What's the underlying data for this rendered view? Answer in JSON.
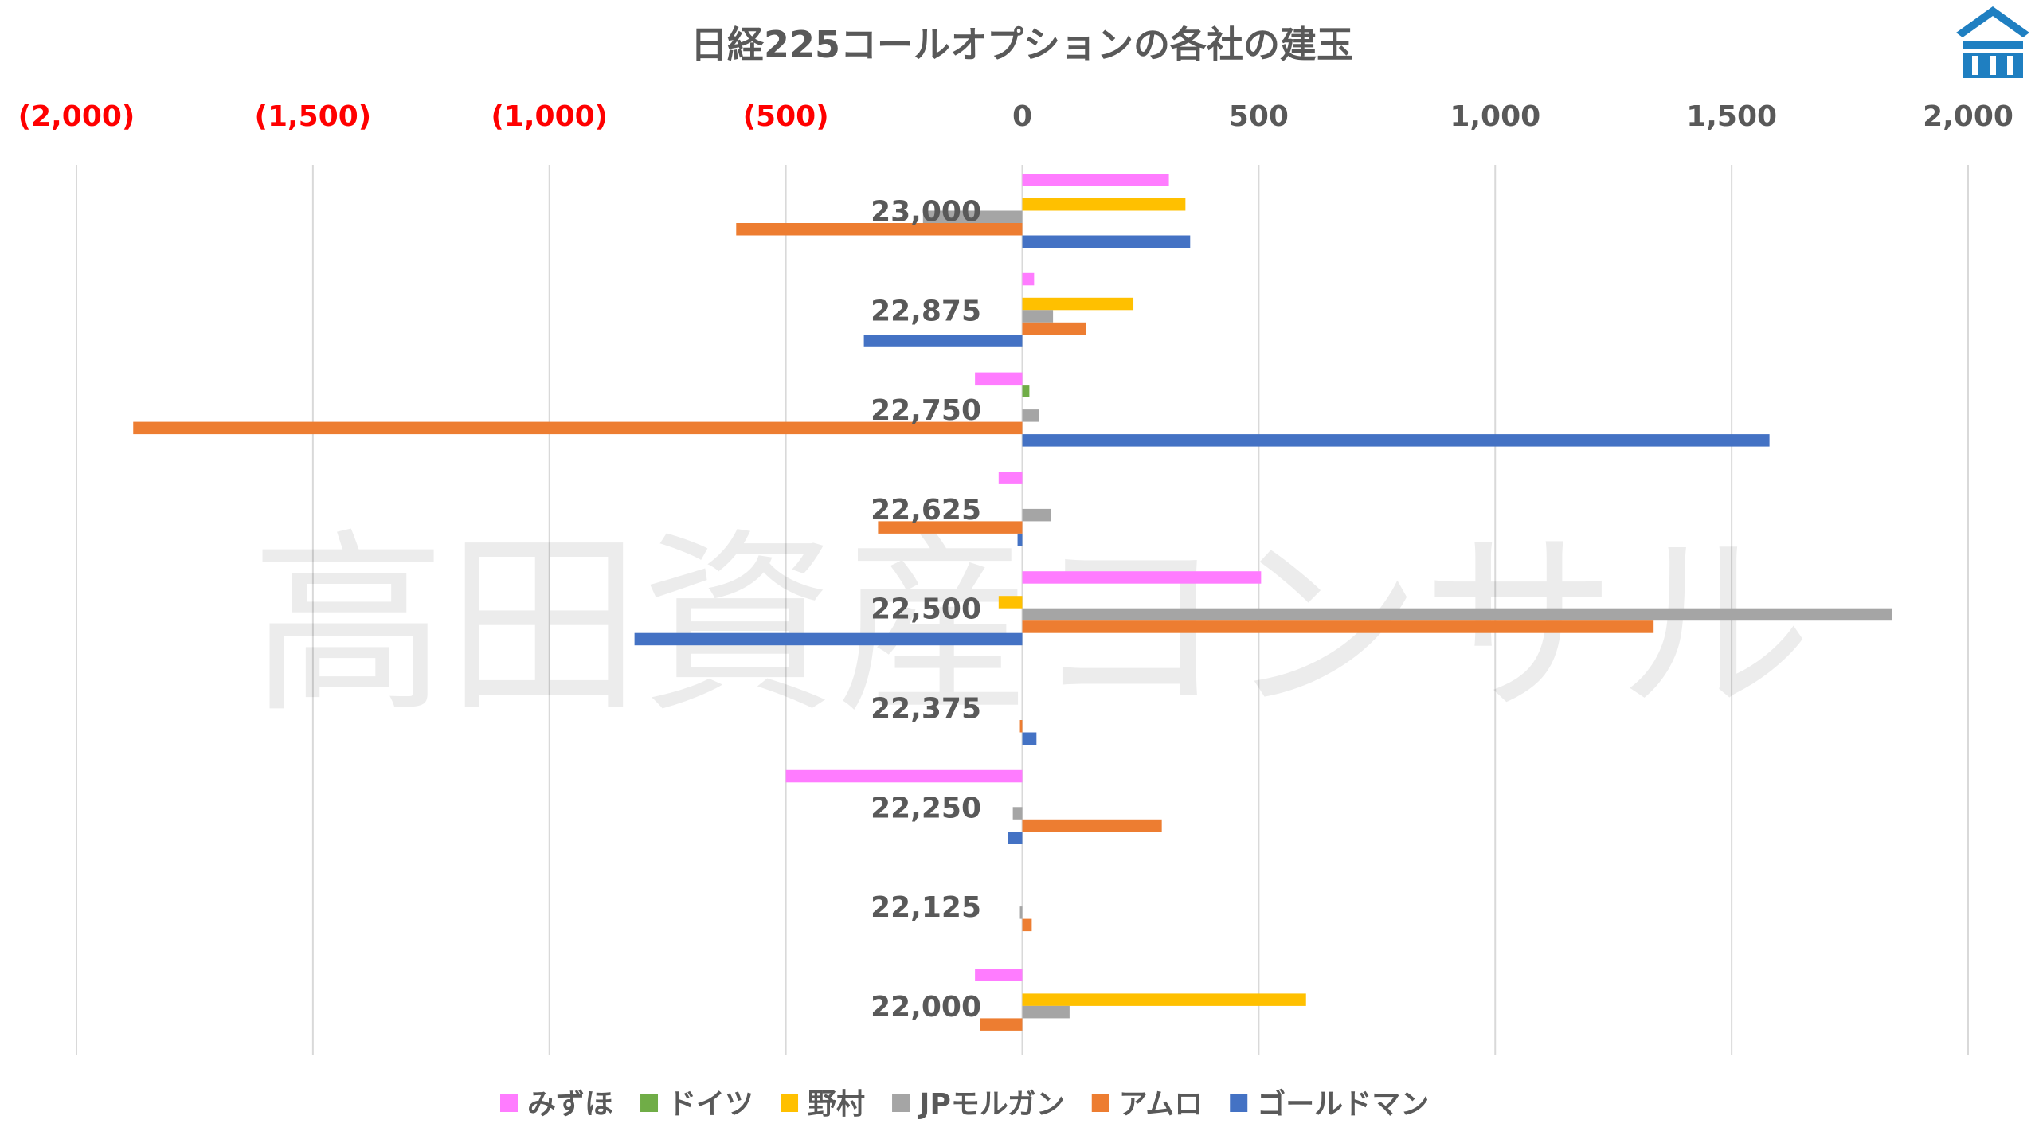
{
  "chart_data": {
    "type": "bar",
    "orientation": "horizontal",
    "title": "日経225コールオプションの各社の建玉",
    "xlim": [
      -2000,
      2000
    ],
    "x_ticks": [
      -2000,
      -1500,
      -1000,
      -500,
      0,
      500,
      1000,
      1500,
      2000
    ],
    "x_tick_labels": [
      "(2,000)",
      "(1,500)",
      "(1,000)",
      "(500)",
      "0",
      "500",
      "1,000",
      "1,500",
      "2,000"
    ],
    "negative_tick_color": "#ff0000",
    "positive_tick_color": "#595959",
    "grid": true,
    "legend_position": "bottom",
    "categories": [
      "23,000",
      "22,875",
      "22,750",
      "22,625",
      "22,500",
      "22,375",
      "22,250",
      "22,125",
      "22,000"
    ],
    "series": [
      {
        "name": "みずほ",
        "color": "#ff7cff",
        "values": [
          310,
          25,
          -100,
          -50,
          505,
          0,
          -500,
          0,
          -100
        ]
      },
      {
        "name": "ドイツ",
        "color": "#70ad47",
        "values": [
          0,
          0,
          15,
          0,
          0,
          0,
          0,
          0,
          0
        ]
      },
      {
        "name": "野村",
        "color": "#ffc000",
        "values": [
          345,
          235,
          0,
          0,
          -50,
          0,
          0,
          0,
          600
        ]
      },
      {
        "name": "JPモルガン",
        "color": "#a5a5a5",
        "values": [
          -210,
          65,
          35,
          60,
          1840,
          0,
          -20,
          -5,
          100
        ]
      },
      {
        "name": "アムロ",
        "color": "#ed7d31",
        "values": [
          -605,
          135,
          -1880,
          -305,
          1335,
          -5,
          295,
          20,
          -90
        ]
      },
      {
        "name": "ゴールドマン",
        "color": "#4472c4",
        "values": [
          355,
          -335,
          1580,
          -10,
          -820,
          30,
          -30,
          0,
          0
        ]
      }
    ]
  },
  "watermark": "高田資産コンサル",
  "logo": {
    "name": "house-logo",
    "color": "#1f7fc1"
  }
}
